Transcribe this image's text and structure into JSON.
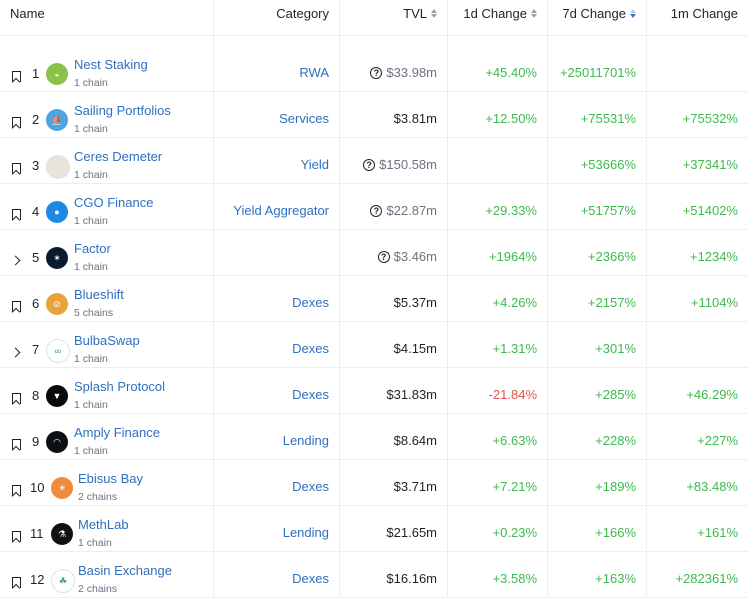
{
  "headers": {
    "name": "Name",
    "category": "Category",
    "tvl": "TVL",
    "change_1d": "1d Change",
    "change_7d": "7d Change",
    "change_1m": "1m Change"
  },
  "colors": {
    "link": "#2f6fbf",
    "positive": "#3fb950",
    "negative": "#e5534b"
  },
  "rows": [
    {
      "rank": "1",
      "name": "Nest Staking",
      "chains": "1 chain",
      "category": "RWA",
      "tvl": "$33.98m",
      "tvl_estimated": true,
      "change_1d": "+45.40%",
      "change_7d": "+25011701%",
      "change_1m": "",
      "lead": "bookmark",
      "logo_color": "#8bc34a",
      "logo_text": "◒"
    },
    {
      "rank": "2",
      "name": "Sailing Portfolios",
      "chains": "1 chain",
      "category": "Services",
      "tvl": "$3.81m",
      "tvl_estimated": false,
      "change_1d": "+12.50%",
      "change_7d": "+75531%",
      "change_1m": "+75532%",
      "lead": "bookmark",
      "logo_color": "#4fa3e0",
      "logo_text": "⛵"
    },
    {
      "rank": "3",
      "name": "Ceres Demeter",
      "chains": "1 chain",
      "category": "Yield",
      "tvl": "$150.58m",
      "tvl_estimated": true,
      "change_1d": "",
      "change_7d": "+53666%",
      "change_1m": "+37341%",
      "lead": "bookmark",
      "logo_color": "#e8e4dc",
      "logo_text": ""
    },
    {
      "rank": "4",
      "name": "CGO Finance",
      "chains": "1 chain",
      "category": "Yield Aggregator",
      "tvl": "$22.87m",
      "tvl_estimated": true,
      "change_1d": "+29.33%",
      "change_7d": "+51757%",
      "change_1m": "+51402%",
      "lead": "bookmark",
      "logo_color": "#1e88e5",
      "logo_text": "●"
    },
    {
      "rank": "5",
      "name": "Factor",
      "chains": "1 chain",
      "category": "",
      "tvl": "$3.46m",
      "tvl_estimated": true,
      "change_1d": "+1964%",
      "change_7d": "+2366%",
      "change_1m": "+1234%",
      "lead": "chevron",
      "logo_color": "#0b1a2e",
      "logo_text": "✶"
    },
    {
      "rank": "6",
      "name": "Blueshift",
      "chains": "5 chains",
      "category": "Dexes",
      "tvl": "$5.37m",
      "tvl_estimated": false,
      "change_1d": "+4.26%",
      "change_7d": "+2157%",
      "change_1m": "+1104%",
      "lead": "bookmark",
      "logo_color": "#e8a33d",
      "logo_text": "⊘"
    },
    {
      "rank": "7",
      "name": "BulbaSwap",
      "chains": "1 chain",
      "category": "Dexes",
      "tvl": "$4.15m",
      "tvl_estimated": false,
      "change_1d": "+1.31%",
      "change_7d": "+301%",
      "change_1m": "",
      "lead": "chevron",
      "logo_color": "#ffffff",
      "logo_text": "∞"
    },
    {
      "rank": "8",
      "name": "Splash Protocol",
      "chains": "1 chain",
      "category": "Dexes",
      "tvl": "$31.83m",
      "tvl_estimated": false,
      "change_1d": "-21.84%",
      "change_7d": "+285%",
      "change_1m": "+46.29%",
      "lead": "bookmark",
      "logo_color": "#0a0a0a",
      "logo_text": "▼"
    },
    {
      "rank": "9",
      "name": "Amply Finance",
      "chains": "1 chain",
      "category": "Lending",
      "tvl": "$8.64m",
      "tvl_estimated": false,
      "change_1d": "+6.63%",
      "change_7d": "+228%",
      "change_1m": "+227%",
      "lead": "bookmark",
      "logo_color": "#0d1117",
      "logo_text": "◠"
    },
    {
      "rank": "10",
      "name": "Ebisus Bay",
      "chains": "2 chains",
      "category": "Dexes",
      "tvl": "$3.71m",
      "tvl_estimated": false,
      "change_1d": "+7.21%",
      "change_7d": "+189%",
      "change_1m": "+83.48%",
      "lead": "bookmark",
      "logo_color": "#f08a3c",
      "logo_text": "☀"
    },
    {
      "rank": "11",
      "name": "MethLab",
      "chains": "1 chain",
      "category": "Lending",
      "tvl": "$21.65m",
      "tvl_estimated": false,
      "change_1d": "+0.23%",
      "change_7d": "+166%",
      "change_1m": "+161%",
      "lead": "bookmark",
      "logo_color": "#111111",
      "logo_text": "⚗"
    },
    {
      "rank": "12",
      "name": "Basin Exchange",
      "chains": "2 chains",
      "category": "Dexes",
      "tvl": "$16.16m",
      "tvl_estimated": false,
      "change_1d": "+3.58%",
      "change_7d": "+163%",
      "change_1m": "+282361%",
      "lead": "bookmark",
      "logo_color": "#ffffff",
      "logo_text": "☘"
    }
  ]
}
